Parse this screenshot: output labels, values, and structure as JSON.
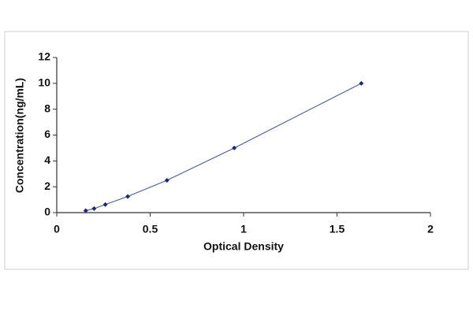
{
  "chart_data": {
    "type": "scatter",
    "x_label": "Optical Density",
    "y_label": "Concentration(ng/mL)",
    "x": [
      0.155,
      0.2,
      0.26,
      0.38,
      0.59,
      0.95,
      1.63
    ],
    "values": [
      0.156,
      0.312,
      0.625,
      1.25,
      2.5,
      5,
      10
    ],
    "color": "#1a2a6c",
    "xlim": [
      0,
      2
    ],
    "xticks": [
      0,
      0.5,
      1,
      1.5,
      2
    ],
    "ylim": [
      0,
      12
    ],
    "yticks": [
      0,
      2,
      4,
      6,
      8,
      10,
      12
    ],
    "grid": false
  }
}
